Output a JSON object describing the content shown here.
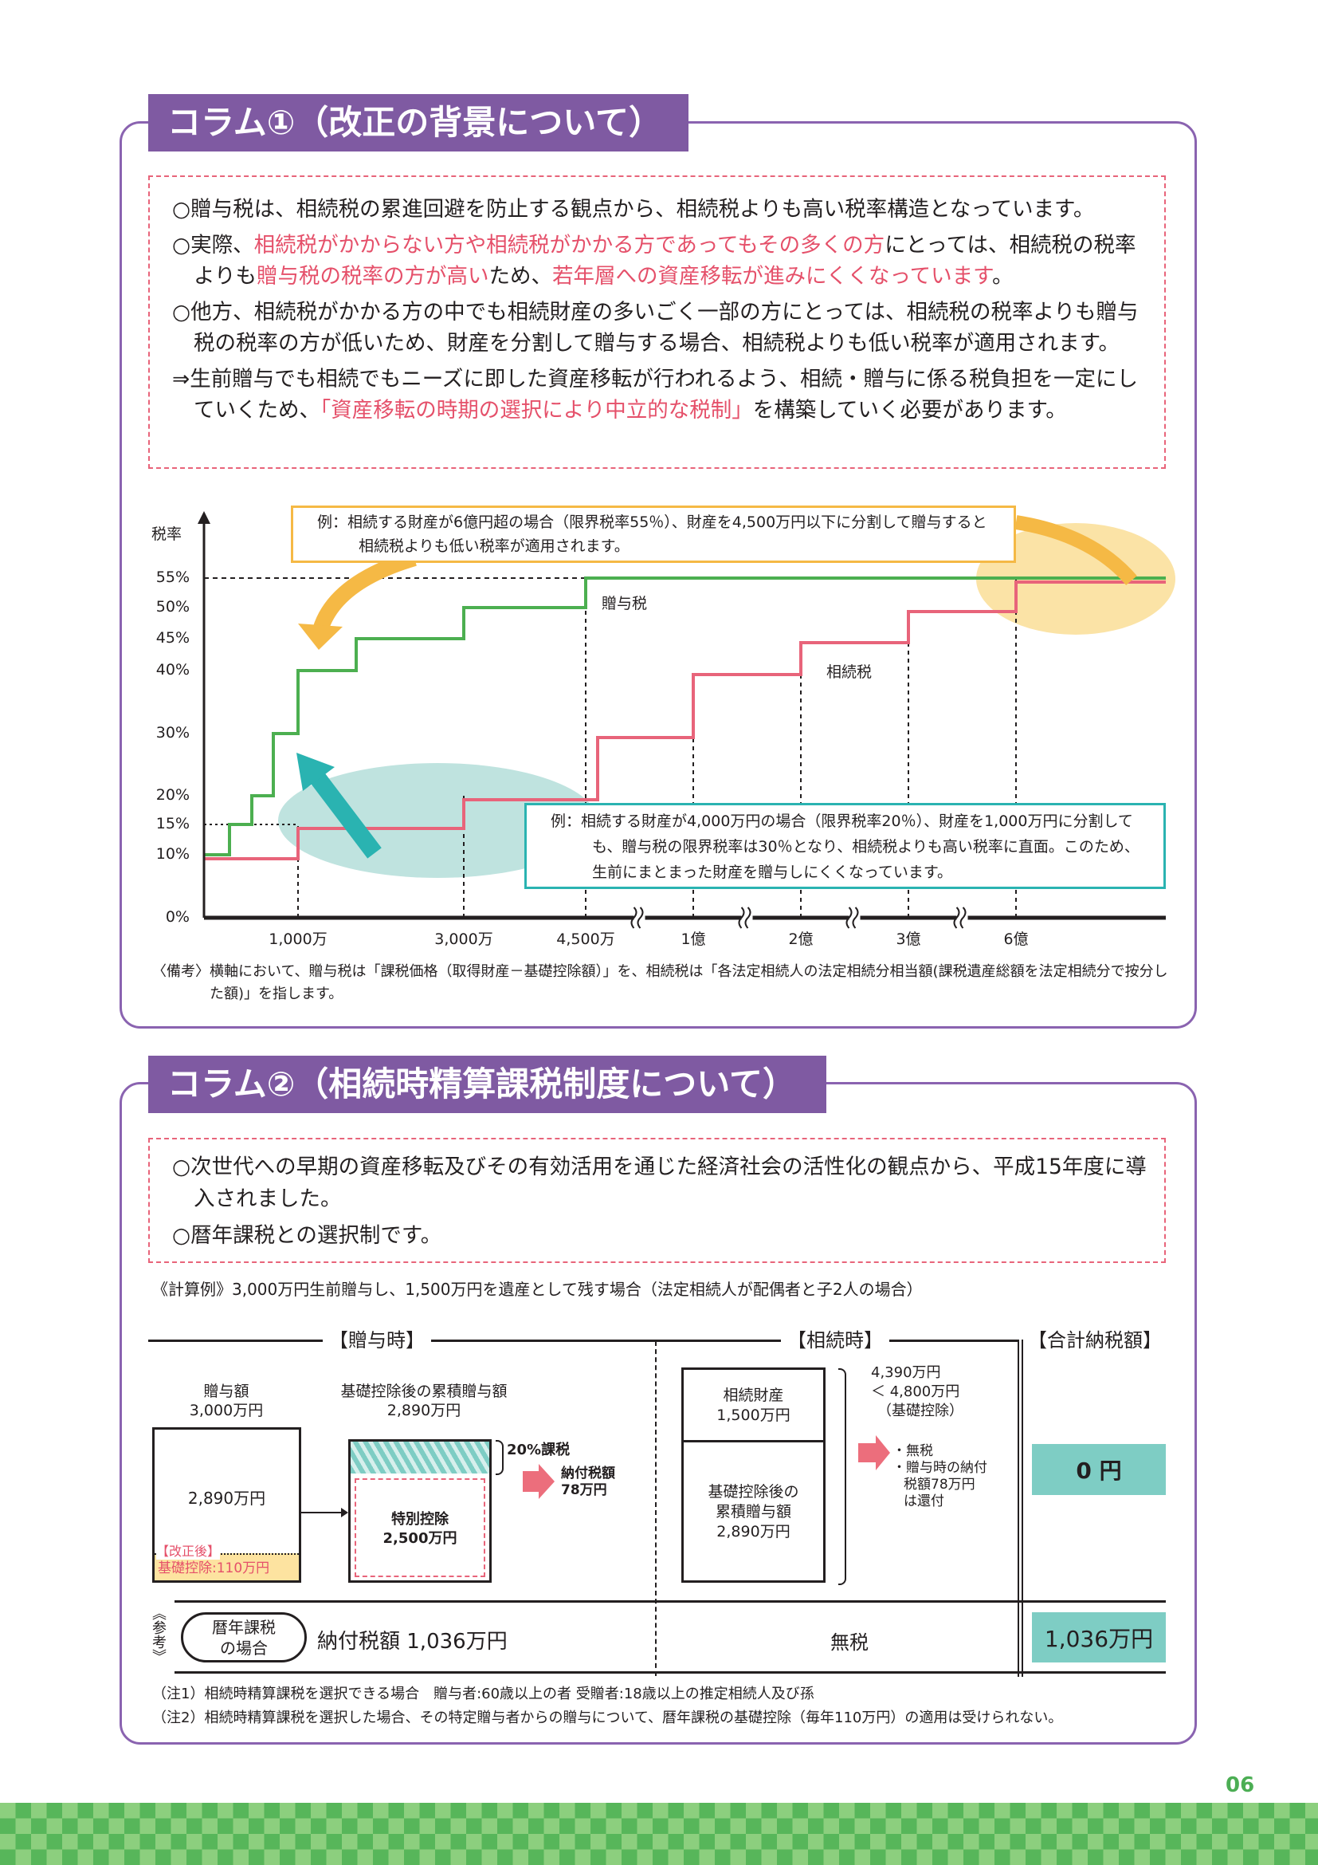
{
  "page_number": "06",
  "colors": {
    "purple": "#7f5aa2",
    "highlight_red": "#e5506a",
    "gift_tax_line": "#4caf50",
    "inheritance_tax_line": "#e8647a",
    "teal": "#7ecdc4",
    "orange": "#f5b945"
  },
  "column1": {
    "title": "コラム①（改正の背景について）",
    "paragraphs": [
      {
        "segments": [
          {
            "text": "○贈与税は、相続税の累進回避を防止する観点から、相続税よりも高い税率構造となっています。",
            "highlight": false
          }
        ]
      },
      {
        "segments": [
          {
            "text": "○実際、",
            "highlight": false
          },
          {
            "text": "相続税がかからない方や相続税がかかる方であってもその多くの方",
            "highlight": true
          },
          {
            "text": "にとっては、相続税の税率よりも",
            "highlight": false
          },
          {
            "text": "贈与税の税率の方が高い",
            "highlight": true
          },
          {
            "text": "ため、",
            "highlight": false
          },
          {
            "text": "若年層への資産移転が進みにくくなっています",
            "highlight": true
          },
          {
            "text": "。",
            "highlight": false
          }
        ]
      },
      {
        "segments": [
          {
            "text": "○他方、相続税がかかる方の中でも相続財産の多いごく一部の方にとっては、相続税の税率よりも贈与税の税率の方が低いため、財産を分割して贈与する場合、相続税よりも低い税率が適用されます。",
            "highlight": false
          }
        ]
      },
      {
        "segments": [
          {
            "text": "⇒生前贈与でも相続でもニーズに即した資産移転が行われるよう、相続・贈与に係る税負担を一定にしていくため、",
            "highlight": false
          },
          {
            "text": "「資産移転の時期の選択により中立的な税制」",
            "highlight": true
          },
          {
            "text": "を構築していく必要があります。",
            "highlight": false
          }
        ]
      }
    ]
  },
  "chart_data": {
    "type": "line",
    "title": "",
    "xlabel": "",
    "ylabel": "税率",
    "y_ticks": [
      {
        "label": "0%",
        "value": 0
      },
      {
        "label": "10%",
        "value": 10
      },
      {
        "label": "15%",
        "value": 15
      },
      {
        "label": "20%",
        "value": 20
      },
      {
        "label": "30%",
        "value": 30
      },
      {
        "label": "40%",
        "value": 40
      },
      {
        "label": "45%",
        "value": 45
      },
      {
        "label": "50%",
        "value": 50
      },
      {
        "label": "55%",
        "value": 55
      }
    ],
    "x_unit": "万円",
    "x_ticks": [
      {
        "label": "1,000万",
        "value": 1000
      },
      {
        "label": "3,000万",
        "value": 3000
      },
      {
        "label": "4,500万",
        "value": 4500
      },
      {
        "label": "1億",
        "value": 10000
      },
      {
        "label": "2億",
        "value": 20000
      },
      {
        "label": "3億",
        "value": 30000
      },
      {
        "label": "6億",
        "value": 60000
      }
    ],
    "x_axis_breaks": [
      [
        4500,
        10000
      ],
      [
        10000,
        20000
      ],
      [
        20000,
        30000
      ],
      [
        30000,
        60000
      ]
    ],
    "series": [
      {
        "name": "贈与税",
        "steps": [
          [
            0,
            10
          ],
          [
            200,
            15
          ],
          [
            400,
            20
          ],
          [
            600,
            30
          ],
          [
            1000,
            40
          ],
          [
            1500,
            45
          ],
          [
            3000,
            50
          ],
          [
            4500,
            55
          ]
        ]
      },
      {
        "name": "相続税",
        "steps": [
          [
            0,
            10
          ],
          [
            1000,
            15
          ],
          [
            3000,
            20
          ],
          [
            5000,
            30
          ],
          [
            10000,
            40
          ],
          [
            20000,
            45
          ],
          [
            30000,
            50
          ],
          [
            60000,
            55
          ]
        ]
      }
    ],
    "annotations": [
      {
        "prefix": "例：",
        "text": "相続する財産が6億円超の場合（限界税率55％）、財産を4,500万円以下に分割して贈与すると相続税よりも低い税率が適用されます。"
      },
      {
        "prefix": "例：",
        "text": "相続する財産が4,000万円の場合（限界税率20％）、財産を1,000万円に分割しても、贈与税の限界税率は30％となり、相続税よりも高い税率に直面。このため、生前にまとまった財産を贈与しにくくなっています。"
      }
    ],
    "note": "〈備考〉横軸において、贈与税は「課税価格（取得財産－基礎控除額）」を、相続税は「各法定相続人の法定相続分相当額(課税遺産総額を法定相続分で按分した額)」を指します。"
  },
  "column2": {
    "title": "コラム②（相続時精算課税制度について）",
    "paragraphs": [
      "○次世代への早期の資産移転及びその有効活用を通じた経済社会の活性化の観点から、平成15年度に導入されました。",
      "○暦年課税との選択制です。"
    ],
    "example_caption": "《計算例》3,000万円生前贈与し、1,500万円を遺産として残す場合（法定相続人が配偶者と子2人の場合）",
    "headers": {
      "gift": "【贈与時】",
      "inheritance": "【相続時】",
      "total": "【合計納税額】"
    },
    "gift": {
      "amount_label": "贈与額",
      "amount_value": "3,000万円",
      "box_value": "2,890万円",
      "revised_label": "【改正後】",
      "basic_deduction": "基礎控除:110万円",
      "cumulative_label": "基礎控除後の累積贈与額",
      "cumulative_value": "2,890万円",
      "special_deduction_label": "特別控除",
      "special_deduction_value": "2,500万円",
      "tax_rate_label": "20%課税",
      "tax_paid_label": "納付税額",
      "tax_paid_value": "78万円"
    },
    "inheritance": {
      "estate_label": "相続財産",
      "estate_value": "1,500万円",
      "cumulative_label_1": "基礎控除後の",
      "cumulative_label_2": "累積贈与額",
      "cumulative_value": "2,890万円",
      "total_value": "4,390万円",
      "comparison": "＜ 4,800万円",
      "comparison_note": "（基礎控除）",
      "results": [
        "・無税",
        "・贈与時の納付",
        "税額78万円",
        "は還付"
      ]
    },
    "total_tax": "0 円",
    "reference": {
      "marker": "《参考》",
      "case_label_1": "暦年課税",
      "case_label_2": "の場合",
      "gift_tax": "納付税額 1,036万円",
      "inheritance_tax": "無税",
      "total": "1,036万円"
    },
    "notes": [
      "（注1）相続時精算課税を選択できる場合　贈与者:60歳以上の者 受贈者:18歳以上の推定相続人及び孫",
      "（注2）相続時精算課税を選択した場合、その特定贈与者からの贈与について、暦年課税の基礎控除（毎年110万円）の適用は受けられない。"
    ]
  }
}
